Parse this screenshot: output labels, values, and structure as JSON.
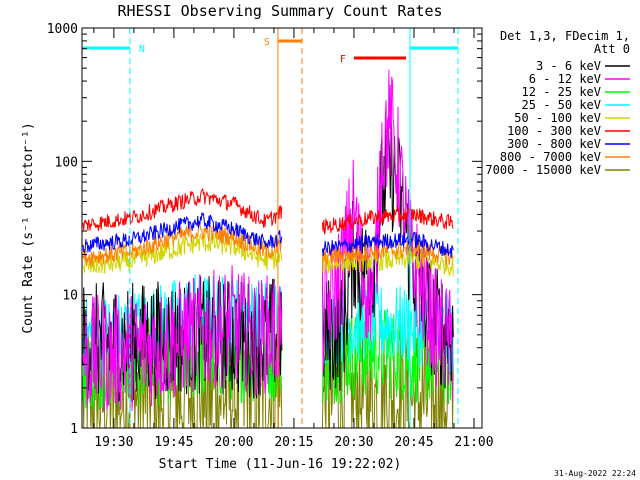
{
  "chart_data": {
    "type": "line",
    "title": "RHESSI Observing Summary Count Rates",
    "xlabel": "Start Time (11-Jun-16 19:22:02)",
    "ylabel": "Count Rate (s⁻¹ detector⁻¹)",
    "yscale": "log",
    "ylim": [
      1,
      1000
    ],
    "xlim": [
      "19:22:02",
      "21:02:00"
    ],
    "x_unit": "time of day (hh:mm, 11-Jun-16)",
    "x_ticks": [
      "19:30",
      "19:45",
      "20:00",
      "20:15",
      "20:30",
      "20:45",
      "21:00"
    ],
    "y_ticks": [
      "1",
      "10",
      "100",
      "1000"
    ],
    "legend": {
      "title_lines": [
        "Det 1,3, FDecim 1,",
        "Att 0"
      ],
      "placement": "right, outside plot"
    },
    "gap": [
      "20:12",
      "20:22"
    ],
    "series": [
      {
        "name": "3 - 6 keV",
        "color": "#000000",
        "points": [
          [
            "19:22",
            4.5
          ],
          [
            "19:30",
            4.4
          ],
          [
            "19:40",
            4.6
          ],
          [
            "19:50",
            5.0
          ],
          [
            "20:00",
            4.8
          ],
          [
            "20:08",
            4.6
          ],
          [
            "20:12",
            5.5
          ],
          [
            "20:22",
            5.0
          ],
          [
            "20:27",
            5.2
          ],
          [
            "20:30",
            22
          ],
          [
            "20:32",
            14
          ],
          [
            "20:35",
            18
          ],
          [
            "20:37",
            60
          ],
          [
            "20:39",
            88
          ],
          [
            "20:41",
            65
          ],
          [
            "20:44",
            20
          ],
          [
            "20:50",
            6.0
          ],
          [
            "20:55",
            5.0
          ]
        ]
      },
      {
        "name": "6 - 12 keV",
        "color": "#ff00ff",
        "points": [
          [
            "19:22",
            3.5
          ],
          [
            "19:30",
            3.6
          ],
          [
            "19:40",
            4.0
          ],
          [
            "19:50",
            5.0
          ],
          [
            "20:00",
            6.0
          ],
          [
            "20:05",
            4.8
          ],
          [
            "20:12",
            5.5
          ],
          [
            "20:22",
            6.0
          ],
          [
            "20:27",
            15
          ],
          [
            "20:30",
            45
          ],
          [
            "20:32",
            14
          ],
          [
            "20:35",
            10
          ],
          [
            "20:37",
            130
          ],
          [
            "20:39",
            195
          ],
          [
            "20:41",
            95
          ],
          [
            "20:44",
            20
          ],
          [
            "20:50",
            6.0
          ],
          [
            "20:55",
            3.7
          ]
        ]
      },
      {
        "name": "12 - 25 keV",
        "color": "#00ff00",
        "points": [
          [
            "19:22",
            3.0
          ],
          [
            "19:40",
            3.2
          ],
          [
            "19:55",
            3.6
          ],
          [
            "20:05",
            3.4
          ],
          [
            "20:12",
            3.5
          ],
          [
            "20:22",
            3.3
          ],
          [
            "20:35",
            3.8
          ],
          [
            "20:45",
            3.4
          ],
          [
            "20:55",
            3.1
          ]
        ]
      },
      {
        "name": "25 - 50 keV",
        "color": "#00ffff",
        "points": [
          [
            "19:22",
            4.8
          ],
          [
            "19:40",
            6.0
          ],
          [
            "19:50",
            7.5
          ],
          [
            "20:00",
            7.0
          ],
          [
            "20:12",
            6.5
          ],
          [
            "20:22",
            5.8
          ],
          [
            "20:35",
            6.2
          ],
          [
            "20:45",
            5.8
          ],
          [
            "20:55",
            5.0
          ]
        ]
      },
      {
        "name": "50 - 100 keV",
        "color": "#d4d400",
        "points": [
          [
            "19:22",
            16
          ],
          [
            "19:35",
            18
          ],
          [
            "19:45",
            22
          ],
          [
            "19:52",
            25
          ],
          [
            "20:00",
            23
          ],
          [
            "20:08",
            18
          ],
          [
            "20:12",
            19
          ],
          [
            "20:22",
            17
          ],
          [
            "20:35",
            18
          ],
          [
            "20:45",
            18.5
          ],
          [
            "20:55",
            16.5
          ]
        ]
      },
      {
        "name": "100 - 300 keV",
        "color": "#ff0000",
        "points": [
          [
            "19:22",
            33
          ],
          [
            "19:35",
            38
          ],
          [
            "19:45",
            48
          ],
          [
            "19:52",
            55
          ],
          [
            "20:00",
            48
          ],
          [
            "20:08",
            35
          ],
          [
            "20:12",
            42
          ],
          [
            "20:22",
            32
          ],
          [
            "20:35",
            38
          ],
          [
            "20:45",
            40
          ],
          [
            "20:55",
            34
          ]
        ]
      },
      {
        "name": "300 - 800 keV",
        "color": "#0000ff",
        "points": [
          [
            "19:22",
            23
          ],
          [
            "19:35",
            26
          ],
          [
            "19:45",
            32
          ],
          [
            "19:52",
            36
          ],
          [
            "20:00",
            31
          ],
          [
            "20:08",
            24
          ],
          [
            "20:12",
            27
          ],
          [
            "20:22",
            22
          ],
          [
            "20:35",
            25
          ],
          [
            "20:45",
            26
          ],
          [
            "20:55",
            21
          ]
        ]
      },
      {
        "name": "800 - 7000 keV",
        "color": "#ff8000",
        "points": [
          [
            "19:22",
            19
          ],
          [
            "19:35",
            21
          ],
          [
            "19:45",
            27
          ],
          [
            "19:52",
            30
          ],
          [
            "20:00",
            27
          ],
          [
            "20:08",
            21
          ],
          [
            "20:12",
            23
          ],
          [
            "20:22",
            19
          ],
          [
            "20:35",
            21
          ],
          [
            "20:45",
            22
          ],
          [
            "20:55",
            19
          ]
        ]
      },
      {
        "name": "7000 - 15000 keV",
        "color": "#808000",
        "points": [
          [
            "19:22",
            1.6
          ],
          [
            "19:40",
            1.7
          ],
          [
            "19:55",
            1.8
          ],
          [
            "20:12",
            1.7
          ],
          [
            "20:22",
            1.6
          ],
          [
            "20:40",
            1.7
          ],
          [
            "20:55",
            1.6
          ]
        ]
      }
    ],
    "annotations": [
      {
        "label": "N",
        "color": "#00ffff",
        "segments": [
          [
            "19:22",
            "19:34"
          ],
          [
            "20:44",
            "20:56"
          ]
        ]
      },
      {
        "label": "S",
        "color": "#ff8000",
        "segments": [
          [
            "20:11",
            "20:17"
          ]
        ]
      },
      {
        "label": "F",
        "color": "#ff0000",
        "segments": [
          [
            "20:30",
            "20:43"
          ]
        ]
      }
    ],
    "vertical_markers": [
      {
        "time": "19:34",
        "color": "#00ffff",
        "style": "dashed"
      },
      {
        "time": "20:44",
        "color": "#00ffff",
        "style": "solid"
      },
      {
        "time": "20:56",
        "color": "#00ffff",
        "style": "dashed"
      },
      {
        "time": "20:11",
        "color": "#ff8000",
        "style": "solid"
      },
      {
        "time": "20:17",
        "color": "#ff8000",
        "style": "dashed"
      }
    ],
    "footer": "31-Aug-2022 22:24",
    "colors": {
      "background": "#ffffff",
      "axes": "#000000"
    }
  }
}
